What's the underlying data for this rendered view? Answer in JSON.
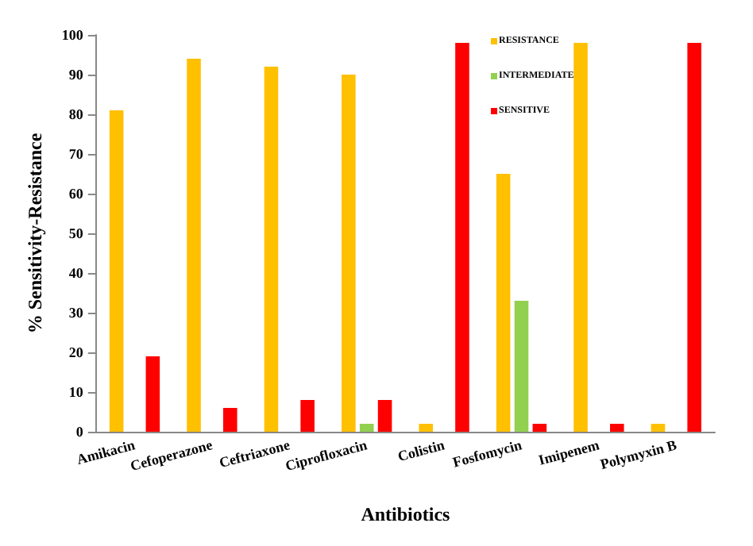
{
  "chart_data": {
    "type": "bar",
    "xlabel": "Antibiotics",
    "ylabel": "% Sensitivity-Resistance",
    "categories": [
      "Amikacin",
      "Cefoperazone",
      "Ceftriaxone",
      "Ciprofloxacin",
      "Colistin",
      "Fosfomycin",
      "Imipenem",
      "Polymyxin B"
    ],
    "series": [
      {
        "name": "RESISTANCE",
        "color": "#ffc000",
        "values": [
          81,
          94,
          92,
          90,
          2,
          65,
          98,
          2
        ]
      },
      {
        "name": "INTERMEDIATE",
        "color": "#92d050",
        "values": [
          0,
          0,
          0,
          2,
          0,
          33,
          0,
          0
        ]
      },
      {
        "name": "SENSITIVE",
        "color": "#ff0000",
        "values": [
          19,
          6,
          8,
          8,
          98,
          2,
          2,
          98
        ]
      }
    ],
    "ylim": [
      0,
      100
    ],
    "yticks": [
      0,
      10,
      20,
      30,
      40,
      50,
      60,
      70,
      80,
      90,
      100
    ],
    "grid": false,
    "legend": "top right"
  }
}
